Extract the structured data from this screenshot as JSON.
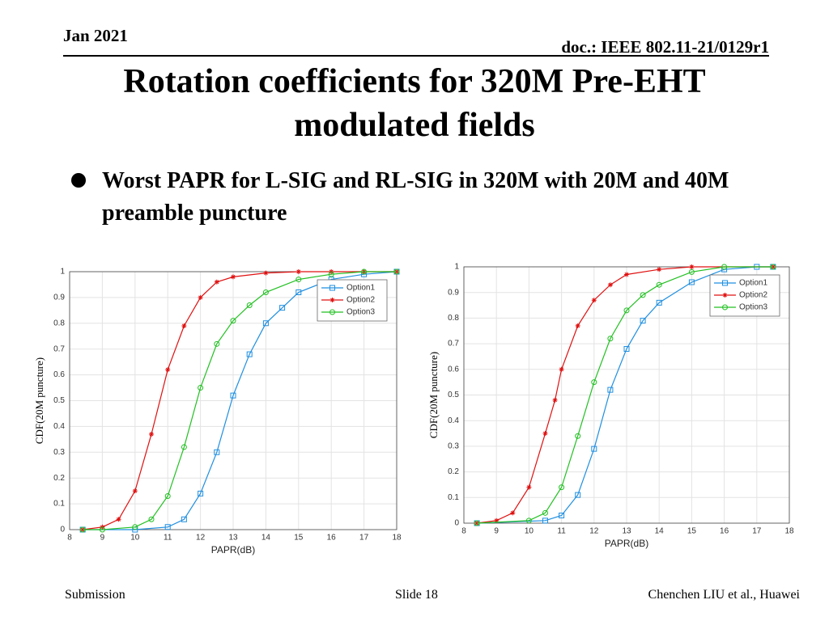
{
  "header": {
    "date": "Jan 2021",
    "doc": "doc.: IEEE 802.11-21/0129r1",
    "title": "Rotation coefficients for 320M Pre-EHT modulated fields",
    "bullet": "Worst PAPR for L-SIG and RL-SIG in 320M with 20M and 40M preamble puncture"
  },
  "footer": {
    "left": "Submission",
    "center": "Slide 18",
    "right": "Chenchen LIU et al., Huawei"
  },
  "chart_data": [
    {
      "type": "line",
      "xlabel": "PAPR(dB)",
      "ylabel": "CDF(20M puncture)",
      "xlim": [
        8,
        18
      ],
      "ylim": [
        0,
        1
      ],
      "xticks": [
        8,
        9,
        10,
        11,
        12,
        13,
        14,
        15,
        16,
        17,
        18
      ],
      "yticks": [
        0,
        0.1,
        0.2,
        0.3,
        0.4,
        0.5,
        0.6,
        0.7,
        0.8,
        0.9,
        1
      ],
      "grid": true,
      "legend": "northeast",
      "series": [
        {
          "name": "Option1",
          "color": "#1f8fe0",
          "marker": "square",
          "x": [
            8.4,
            10,
            11,
            11.5,
            12,
            12.5,
            13,
            13.5,
            14,
            14.5,
            15,
            16,
            17,
            18
          ],
          "values": [
            0,
            0,
            0.01,
            0.04,
            0.14,
            0.3,
            0.52,
            0.68,
            0.8,
            0.86,
            0.92,
            0.97,
            0.99,
            1
          ]
        },
        {
          "name": "Option2",
          "color": "#e01010",
          "marker": "star",
          "x": [
            8.4,
            9,
            9.5,
            10,
            10.5,
            11,
            11.5,
            12,
            12.5,
            13,
            14,
            15,
            16,
            17,
            18
          ],
          "values": [
            0,
            0.01,
            0.04,
            0.15,
            0.37,
            0.62,
            0.79,
            0.9,
            0.96,
            0.98,
            0.995,
            1,
            1,
            1,
            1
          ]
        },
        {
          "name": "Option3",
          "color": "#22c022",
          "marker": "circle",
          "x": [
            8.4,
            9,
            10,
            10.5,
            11,
            11.5,
            12,
            12.5,
            13,
            13.5,
            14,
            15,
            16,
            17,
            18
          ],
          "values": [
            0,
            0,
            0.01,
            0.04,
            0.13,
            0.32,
            0.55,
            0.72,
            0.81,
            0.87,
            0.92,
            0.97,
            0.99,
            1,
            1
          ]
        }
      ]
    },
    {
      "type": "line",
      "xlabel": "PAPR(dB)",
      "ylabel": "CDF(20M puncture)",
      "xlim": [
        8,
        18
      ],
      "ylim": [
        0,
        1
      ],
      "xticks": [
        8,
        9,
        10,
        11,
        12,
        13,
        14,
        15,
        16,
        17,
        18
      ],
      "yticks": [
        0,
        0.1,
        0.2,
        0.3,
        0.4,
        0.5,
        0.6,
        0.7,
        0.8,
        0.9,
        1
      ],
      "grid": true,
      "legend": "northeast",
      "series": [
        {
          "name": "Option1",
          "color": "#1f8fe0",
          "marker": "square",
          "x": [
            8.4,
            10.5,
            11,
            11.5,
            12,
            12.5,
            13,
            13.5,
            14,
            15,
            16,
            17,
            17.5
          ],
          "values": [
            0,
            0.01,
            0.03,
            0.11,
            0.29,
            0.52,
            0.68,
            0.79,
            0.86,
            0.94,
            0.99,
            1,
            1
          ]
        },
        {
          "name": "Option2",
          "color": "#e01010",
          "marker": "star",
          "x": [
            8.4,
            9,
            9.5,
            10,
            10.5,
            10.8,
            11,
            11.5,
            12,
            12.5,
            13,
            14,
            15,
            17.5
          ],
          "values": [
            0,
            0.01,
            0.04,
            0.14,
            0.35,
            0.48,
            0.6,
            0.77,
            0.87,
            0.93,
            0.97,
            0.99,
            1,
            1
          ]
        },
        {
          "name": "Option3",
          "color": "#22c022",
          "marker": "circle",
          "x": [
            8.4,
            10,
            10.5,
            11,
            11.5,
            12,
            12.5,
            13,
            13.5,
            14,
            15,
            16,
            17.5
          ],
          "values": [
            0,
            0.01,
            0.04,
            0.14,
            0.34,
            0.55,
            0.72,
            0.83,
            0.89,
            0.93,
            0.98,
            1,
            1
          ]
        }
      ]
    }
  ]
}
